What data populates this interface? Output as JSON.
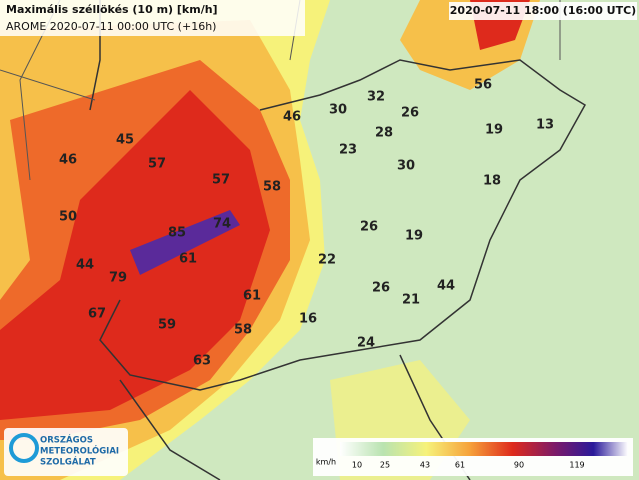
{
  "header": {
    "title": "Maximális széllökés (10 m) [km/h]",
    "subtitle": "AROME 2020-07-11 00:00 UTC (+16h)",
    "valid_time": "2020-07-11 18:00 (16:00 UTC)"
  },
  "logo": {
    "lines": [
      "ORSZÁGOS",
      "METEOROLÓGIAI",
      "SZOLGÁLAT"
    ]
  },
  "labels": [
    46,
    45,
    57,
    57,
    58,
    50,
    85,
    74,
    61,
    44,
    79,
    67,
    59,
    61,
    58,
    63,
    46,
    30,
    32,
    26,
    28,
    23,
    30,
    56,
    19,
    13,
    18,
    26,
    19,
    22,
    26,
    21,
    44,
    16,
    24
  ],
  "colorbar": {
    "unit": "km/h",
    "ticks": [
      10,
      25,
      43,
      61,
      90,
      119
    ]
  }
}
